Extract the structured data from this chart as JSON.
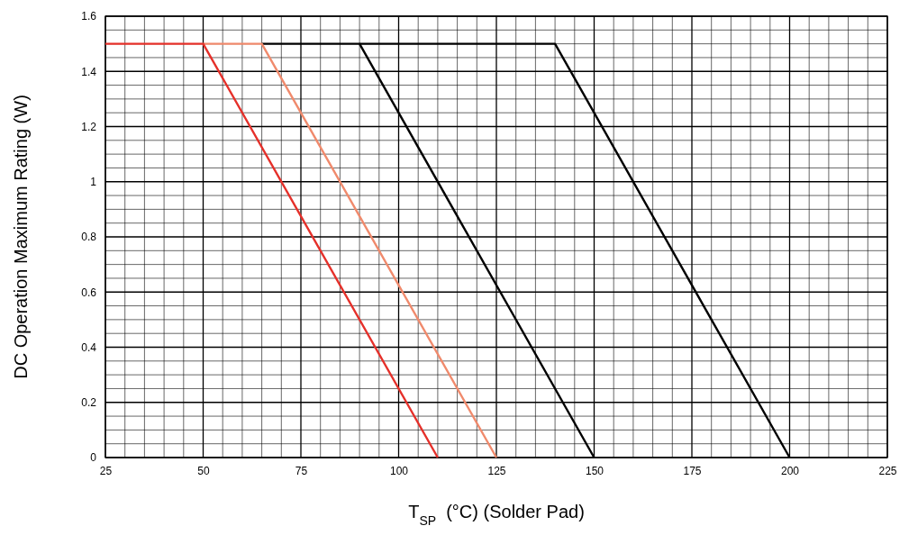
{
  "chart_data": {
    "type": "line",
    "xlabel": "T$_{SP}$  (°C) (Solder Pad)",
    "ylabel": "DC Operation Maximum Rating (W)",
    "xlim": [
      25,
      225
    ],
    "xticks": [
      25,
      50,
      75,
      100,
      125,
      150,
      175,
      200,
      225
    ],
    "ylim": [
      0,
      1.6
    ],
    "yticks": [
      0,
      0.2,
      0.4,
      0.6,
      0.8,
      1,
      1.2,
      1.4,
      1.6
    ],
    "grid": true,
    "line_style": "solid",
    "series": [
      {
        "color": "#000000",
        "x": [
          90,
          140,
          200
        ],
        "values": [
          1.5,
          1.5,
          0
        ]
      },
      {
        "color": "#000000",
        "x": [
          65,
          90,
          150
        ],
        "values": [
          1.5,
          1.5,
          0
        ]
      },
      {
        "color": "#f08a6c",
        "x": [
          50,
          65,
          125
        ],
        "values": [
          1.5,
          1.5,
          0
        ]
      },
      {
        "color": "#e5302a",
        "x": [
          25,
          50,
          110
        ],
        "values": [
          1.5,
          1.5,
          0
        ]
      }
    ]
  }
}
